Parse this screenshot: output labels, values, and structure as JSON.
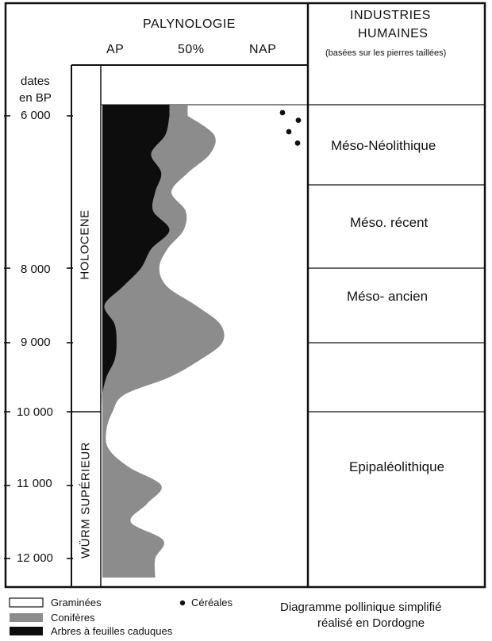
{
  "header": {
    "palynologie": "PALYNOLOGIE",
    "ap": "AP",
    "fifty": "50%",
    "nap": "NAP",
    "industries_line1": "INDUSTRIES",
    "industries_line2": "HUMAINES",
    "industries_note": "(basées sur les pierres taillées)"
  },
  "dates_header": {
    "line1": "dates",
    "line2": "en BP"
  },
  "ticks": [
    {
      "label": "6 000",
      "bp": 6000
    },
    {
      "label": "8 000",
      "bp": 8000
    },
    {
      "label": "9 000",
      "bp": 9000
    },
    {
      "label": "10 000",
      "bp": 10000
    },
    {
      "label": "11 000",
      "bp": 11000
    },
    {
      "label": "12 000",
      "bp": 12000
    }
  ],
  "periods": {
    "holocene": "HOLOCENE",
    "wurm": "WÜRM SUPÉRIEUR"
  },
  "industries": [
    "Méso-Néolithique",
    "Méso. récent",
    "Méso- ancien",
    "Epipaléolithique"
  ],
  "legend": {
    "graminees": "Graminées",
    "coniferes": "Conifères",
    "arbres": "Arbres à feuilles caduques",
    "cereales": "Céréales"
  },
  "caption": {
    "line1": "Diagramme pollinique simplifié",
    "line2": "réalisé en Dordogne"
  },
  "colors": {
    "coniferes": "#8c8c8c",
    "arbres": "#0d0d0d",
    "graminees": "#ffffff"
  },
  "chart_data": {
    "type": "area",
    "x_unit": "percent of pollen sum (0 = AP edge, 100 = NAP edge)",
    "y_unit": "years BP",
    "ylim": [
      6000,
      12200
    ],
    "series": [
      {
        "name": "Arbres à feuilles caduques",
        "profile": [
          [
            6000,
            33
          ],
          [
            6250,
            31
          ],
          [
            6500,
            24
          ],
          [
            6750,
            29
          ],
          [
            7000,
            26
          ],
          [
            7250,
            25
          ],
          [
            7500,
            33
          ],
          [
            7750,
            24
          ],
          [
            8000,
            19
          ],
          [
            8250,
            10
          ],
          [
            8500,
            1
          ],
          [
            8750,
            6
          ],
          [
            9000,
            7
          ],
          [
            9250,
            6
          ],
          [
            9500,
            2
          ],
          [
            9750,
            0
          ],
          [
            10000,
            0
          ],
          [
            12200,
            0
          ]
        ]
      },
      {
        "name": "Conifères",
        "profile": [
          [
            6000,
            42
          ],
          [
            6250,
            55
          ],
          [
            6500,
            53
          ],
          [
            6750,
            42
          ],
          [
            7000,
            34
          ],
          [
            7250,
            41
          ],
          [
            7500,
            40
          ],
          [
            7750,
            32
          ],
          [
            8000,
            28
          ],
          [
            8250,
            32
          ],
          [
            8500,
            46
          ],
          [
            8750,
            58
          ],
          [
            9000,
            59
          ],
          [
            9250,
            48
          ],
          [
            9500,
            33
          ],
          [
            9750,
            11
          ],
          [
            10000,
            5
          ],
          [
            10250,
            2
          ],
          [
            10500,
            3
          ],
          [
            10750,
            13
          ],
          [
            11000,
            29
          ],
          [
            11250,
            22
          ],
          [
            11500,
            14
          ],
          [
            11750,
            30
          ],
          [
            12000,
            26
          ],
          [
            12200,
            26
          ]
        ]
      }
    ],
    "cereales_bp": [
      6000,
      6100,
      6250,
      6400
    ]
  }
}
